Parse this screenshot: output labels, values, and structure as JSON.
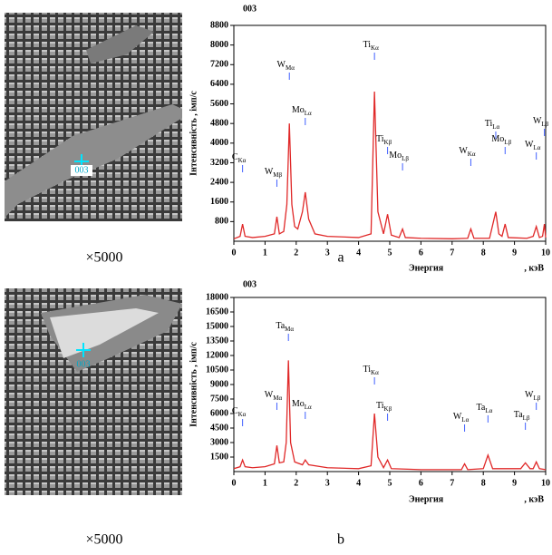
{
  "images": [
    {
      "marker_label": "003",
      "magnification": "×5000"
    },
    {
      "marker_label": "003",
      "magnification": "×5000"
    }
  ],
  "captions": [
    "a",
    "b"
  ],
  "chart_data": [
    {
      "type": "line",
      "title": "003",
      "ylabel": "Інтенсивність , імп/с",
      "xlabel": "Энергия",
      "xlabel_unit": ", кэВ",
      "color": "#e02828",
      "xlim": [
        0,
        10
      ],
      "xticks": [
        0,
        1,
        2,
        3,
        4,
        5,
        6,
        7,
        8,
        9,
        10
      ],
      "ylim": [
        0,
        8800
      ],
      "yticks": [
        800,
        1600,
        2400,
        3200,
        4000,
        4800,
        5600,
        6400,
        7200,
        8000,
        8800
      ],
      "x": [
        0,
        0.2,
        0.28,
        0.36,
        0.6,
        1.0,
        1.3,
        1.38,
        1.46,
        1.6,
        1.7,
        1.78,
        1.86,
        1.95,
        2.05,
        2.2,
        2.29,
        2.4,
        2.6,
        3.0,
        4.0,
        4.4,
        4.51,
        4.62,
        4.8,
        4.93,
        5.05,
        5.3,
        5.41,
        5.5,
        6.0,
        7.0,
        7.5,
        7.6,
        7.7,
        8.2,
        8.4,
        8.5,
        8.6,
        8.7,
        8.8,
        9.4,
        9.6,
        9.7,
        9.8,
        9.9,
        9.96,
        10
      ],
      "values": [
        100,
        200,
        700,
        200,
        150,
        200,
        300,
        1000,
        300,
        400,
        1500,
        4800,
        1500,
        600,
        500,
        1200,
        2000,
        900,
        300,
        200,
        150,
        300,
        6100,
        1200,
        300,
        1100,
        250,
        150,
        500,
        150,
        120,
        100,
        120,
        500,
        120,
        120,
        1200,
        300,
        200,
        700,
        150,
        120,
        200,
        600,
        150,
        200,
        700,
        150
      ],
      "annotations": [
        {
          "text": "C",
          "sub": "Kα"
        },
        {
          "text": "W",
          "sub": "Mβ"
        },
        {
          "text": "W",
          "sub": "Mα"
        },
        {
          "text": "Mo",
          "sub": "Lα"
        },
        {
          "text": "Ti",
          "sub": "Kα"
        },
        {
          "text": "Ti",
          "sub": "Kβ"
        },
        {
          "text": "Mo",
          "sub": "Lβ"
        },
        {
          "text": "W",
          "sub": "Kα"
        },
        {
          "text": "Ti",
          "sub": "Lα"
        },
        {
          "text": "Mo",
          "sub": "Lβ"
        },
        {
          "text": "W",
          "sub": "Lα"
        },
        {
          "text": "W",
          "sub": "Lβ"
        }
      ]
    },
    {
      "type": "line",
      "title": "003",
      "ylabel": "Інтенсивність , імп/с",
      "xlabel": "Энергия",
      "xlabel_unit": ", кэВ",
      "color": "#e02828",
      "xlim": [
        0,
        10
      ],
      "xticks": [
        0,
        1,
        2,
        3,
        4,
        5,
        6,
        7,
        8,
        9,
        10
      ],
      "ylim": [
        0,
        18000
      ],
      "yticks": [
        1500,
        3000,
        4500,
        6000,
        7500,
        9000,
        10500,
        12000,
        13500,
        15000,
        16500,
        18000
      ],
      "x": [
        0,
        0.2,
        0.28,
        0.36,
        0.6,
        1.0,
        1.3,
        1.38,
        1.46,
        1.6,
        1.68,
        1.75,
        1.82,
        1.95,
        2.2,
        2.29,
        2.4,
        3.0,
        4.0,
        4.4,
        4.51,
        4.62,
        4.8,
        4.93,
        5.05,
        6.0,
        7.3,
        7.4,
        7.5,
        8.0,
        8.15,
        8.3,
        9.2,
        9.35,
        9.5,
        9.6,
        9.7,
        9.8,
        10
      ],
      "values": [
        300,
        500,
        1200,
        500,
        400,
        500,
        800,
        2700,
        900,
        1000,
        3000,
        11500,
        3000,
        1000,
        700,
        1200,
        700,
        400,
        300,
        600,
        6000,
        1500,
        400,
        1200,
        300,
        200,
        200,
        800,
        200,
        300,
        1700,
        300,
        300,
        900,
        300,
        300,
        1000,
        300,
        200
      ],
      "annotations": [
        {
          "text": "C",
          "sub": "Kα"
        },
        {
          "text": "W",
          "sub": "Mα"
        },
        {
          "text": "Ta",
          "sub": "Mα"
        },
        {
          "text": "Mo",
          "sub": "Lα"
        },
        {
          "text": "Ti",
          "sub": "Kα"
        },
        {
          "text": "Ti",
          "sub": "Kβ"
        },
        {
          "text": "W",
          "sub": "Lα"
        },
        {
          "text": "Ta",
          "sub": "Lα"
        },
        {
          "text": "Ta",
          "sub": "Lβ"
        },
        {
          "text": "W",
          "sub": "Lβ"
        }
      ]
    }
  ]
}
